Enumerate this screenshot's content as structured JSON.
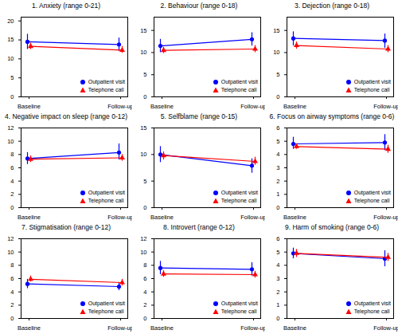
{
  "chart_data": [
    {
      "type": "line",
      "title": "1. Anxiety (range 0-21)",
      "categories": [
        "Baseline",
        "Follow-up"
      ],
      "ylim": [
        0,
        21
      ],
      "yticks": [
        0,
        5,
        10,
        15,
        20
      ],
      "legend": "bottom-right",
      "series": [
        {
          "name": "Outpatient visit",
          "color": "#0000ff",
          "marker": "circle",
          "values": [
            14.5,
            13.8
          ],
          "error_low": [
            12.5,
            12.0
          ],
          "error_high": [
            16.5,
            15.5
          ]
        },
        {
          "name": "Telephone call",
          "color": "#ff0000",
          "marker": "triangle",
          "values": [
            13.3,
            12.3
          ],
          "error_low": [
            12.5,
            11.5
          ],
          "error_high": [
            14.2,
            13.3
          ]
        }
      ]
    },
    {
      "type": "line",
      "title": "2. Behaviour (range 0-18)",
      "categories": [
        "Baseline",
        "Follow-up"
      ],
      "ylim": [
        0,
        18
      ],
      "yticks": [
        0,
        5,
        10,
        15
      ],
      "legend": "bottom-right",
      "series": [
        {
          "name": "Outpatient visit",
          "color": "#0000ff",
          "marker": "circle",
          "values": [
            11.5,
            13.0
          ],
          "error_low": [
            10.0,
            11.5
          ],
          "error_high": [
            13.0,
            14.5
          ]
        },
        {
          "name": "Telephone call",
          "color": "#ff0000",
          "marker": "triangle",
          "values": [
            10.5,
            10.8
          ],
          "error_low": [
            9.8,
            10.0
          ],
          "error_high": [
            11.2,
            11.6
          ]
        }
      ]
    },
    {
      "type": "line",
      "title": "3. Dejection (range 0-18)",
      "categories": [
        "Baseline",
        "Follow-up"
      ],
      "ylim": [
        0,
        18
      ],
      "yticks": [
        0,
        5,
        10,
        15
      ],
      "legend": "bottom-right",
      "series": [
        {
          "name": "Outpatient visit",
          "color": "#0000ff",
          "marker": "circle",
          "values": [
            13.2,
            12.7
          ],
          "error_low": [
            11.5,
            11.0
          ],
          "error_high": [
            14.7,
            14.2
          ]
        },
        {
          "name": "Telephone call",
          "color": "#ff0000",
          "marker": "triangle",
          "values": [
            11.6,
            10.8
          ],
          "error_low": [
            10.8,
            10.0
          ],
          "error_high": [
            12.4,
            11.6
          ]
        }
      ]
    },
    {
      "type": "line",
      "title": "4. Negative impact on sleep (range 0-12)",
      "categories": [
        "Baseline",
        "Follow-up"
      ],
      "ylim": [
        0,
        12
      ],
      "yticks": [
        0,
        2,
        4,
        6,
        8,
        10,
        12
      ],
      "legend": "bottom-right",
      "series": [
        {
          "name": "Outpatient visit",
          "color": "#0000ff",
          "marker": "circle",
          "values": [
            7.4,
            8.3
          ],
          "error_low": [
            6.5,
            7.2
          ],
          "error_high": [
            8.3,
            9.6
          ]
        },
        {
          "name": "Telephone call",
          "color": "#ff0000",
          "marker": "triangle",
          "values": [
            7.3,
            7.5
          ],
          "error_low": [
            6.8,
            7.0
          ],
          "error_high": [
            7.8,
            8.0
          ]
        }
      ]
    },
    {
      "type": "line",
      "title": "5. Selfblame (range 0-15)",
      "categories": [
        "Baseline",
        "Follow-up"
      ],
      "ylim": [
        0,
        15
      ],
      "yticks": [
        0,
        5,
        10,
        15
      ],
      "legend": "bottom-right",
      "series": [
        {
          "name": "Outpatient visit",
          "color": "#0000ff",
          "marker": "circle",
          "values": [
            10.0,
            7.9
          ],
          "error_low": [
            8.5,
            6.5
          ],
          "error_high": [
            11.5,
            9.2
          ]
        },
        {
          "name": "Telephone call",
          "color": "#ff0000",
          "marker": "triangle",
          "values": [
            9.8,
            8.7
          ],
          "error_low": [
            9.0,
            8.0
          ],
          "error_high": [
            10.5,
            9.5
          ]
        }
      ]
    },
    {
      "type": "line",
      "title": "6. Focus on airway symptoms (range 0-6)",
      "categories": [
        "Baseline",
        "Follow-up"
      ],
      "ylim": [
        0,
        6
      ],
      "yticks": [
        0,
        1,
        2,
        3,
        4,
        5,
        6
      ],
      "legend": "bottom-right",
      "series": [
        {
          "name": "Outpatient visit",
          "color": "#0000ff",
          "marker": "circle",
          "values": [
            4.8,
            4.9
          ],
          "error_low": [
            4.4,
            4.3
          ],
          "error_high": [
            5.3,
            5.5
          ]
        },
        {
          "name": "Telephone call",
          "color": "#ff0000",
          "marker": "triangle",
          "values": [
            4.6,
            4.4
          ],
          "error_low": [
            4.4,
            4.1
          ],
          "error_high": [
            4.8,
            4.7
          ]
        }
      ]
    },
    {
      "type": "line",
      "title": "7. Stigmatisation (range 0-12)",
      "categories": [
        "Baseline",
        "Follow-up"
      ],
      "ylim": [
        0,
        12
      ],
      "yticks": [
        0,
        2,
        4,
        6,
        8,
        10,
        12
      ],
      "legend": "bottom-right",
      "series": [
        {
          "name": "Outpatient visit",
          "color": "#0000ff",
          "marker": "circle",
          "values": [
            5.2,
            4.8
          ],
          "error_low": [
            4.5,
            4.2
          ],
          "error_high": [
            5.9,
            5.4
          ]
        },
        {
          "name": "Telephone call",
          "color": "#ff0000",
          "marker": "triangle",
          "values": [
            5.9,
            5.4
          ],
          "error_low": [
            5.5,
            4.9
          ],
          "error_high": [
            6.4,
            5.9
          ]
        }
      ]
    },
    {
      "type": "line",
      "title": "8. Introvert (range 0-12)",
      "categories": [
        "Baseline",
        "Follow-up"
      ],
      "ylim": [
        0,
        12
      ],
      "yticks": [
        0,
        2,
        4,
        6,
        8,
        10,
        12
      ],
      "legend": "bottom-right",
      "series": [
        {
          "name": "Outpatient visit",
          "color": "#0000ff",
          "marker": "circle",
          "values": [
            7.6,
            7.4
          ],
          "error_low": [
            6.6,
            6.4
          ],
          "error_high": [
            8.6,
            8.4
          ]
        },
        {
          "name": "Telephone call",
          "color": "#ff0000",
          "marker": "triangle",
          "values": [
            6.7,
            6.6
          ],
          "error_low": [
            6.2,
            6.1
          ],
          "error_high": [
            7.2,
            7.1
          ]
        }
      ]
    },
    {
      "type": "line",
      "title": "9. Harm of smoking (range 0-6)",
      "categories": [
        "Baseline",
        "Follow-up"
      ],
      "ylim": [
        0,
        6
      ],
      "yticks": [
        0,
        1,
        2,
        3,
        4,
        5,
        6
      ],
      "legend": "bottom-right",
      "series": [
        {
          "name": "Outpatient visit",
          "color": "#0000ff",
          "marker": "circle",
          "values": [
            4.9,
            4.5
          ],
          "error_low": [
            4.5,
            3.9
          ],
          "error_high": [
            5.3,
            5.1
          ]
        },
        {
          "name": "Telephone call",
          "color": "#ff0000",
          "marker": "triangle",
          "values": [
            4.9,
            4.6
          ],
          "error_low": [
            4.6,
            4.3
          ],
          "error_high": [
            5.2,
            4.9
          ]
        }
      ]
    }
  ]
}
